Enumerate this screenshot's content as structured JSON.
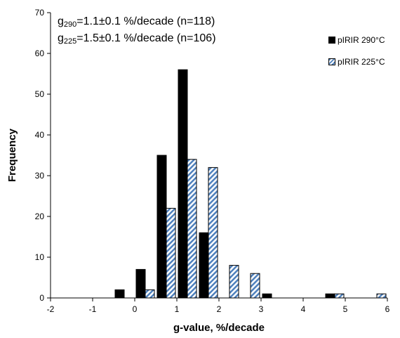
{
  "chart_data": {
    "type": "bar",
    "xlabel": "g-value, %/decade",
    "ylabel": "Frequency",
    "xlim": [
      -2,
      6
    ],
    "ylim": [
      0,
      70
    ],
    "x_ticks": [
      "-2",
      "-1",
      "0",
      "1",
      "2",
      "3",
      "4",
      "5",
      "6"
    ],
    "y_ticks": [
      "0",
      "10",
      "20",
      "30",
      "40",
      "50",
      "60",
      "70"
    ],
    "x": [
      -0.25,
      0.25,
      0.75,
      1.25,
      1.75,
      2.25,
      2.75,
      3.25,
      3.75,
      4.25,
      4.75,
      5.25,
      5.75
    ],
    "series": [
      {
        "name": "pIRIR 290°C",
        "color": "#000000",
        "pattern": "solid",
        "values": [
          2,
          7,
          35,
          56,
          16,
          0,
          0,
          1,
          0,
          0,
          1,
          0,
          0
        ]
      },
      {
        "name": "pIRIR 225°C",
        "color": "#4f81bd",
        "pattern": "diagonal-hatch",
        "values": [
          0,
          2,
          22,
          34,
          32,
          8,
          6,
          0,
          0,
          0,
          1,
          0,
          1
        ]
      }
    ],
    "annotations": [
      {
        "g": "g",
        "sub": "290",
        "rest": "=1.1±0.1 %/decade (n=118)"
      },
      {
        "g": "g",
        "sub": "225",
        "rest": "=1.5±0.1 %/decade (n=106)"
      }
    ],
    "legend_placement": "top-right",
    "grid": false
  }
}
